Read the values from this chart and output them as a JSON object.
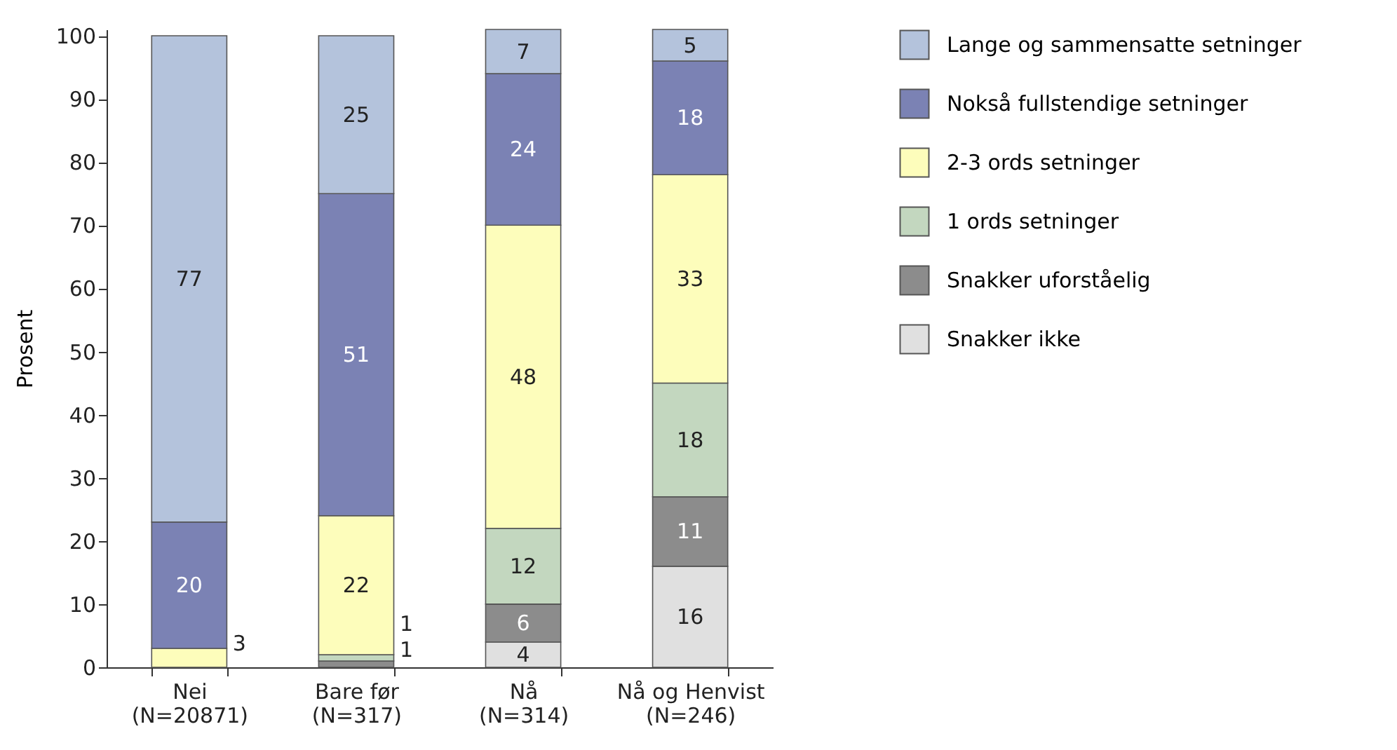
{
  "chart_data": {
    "type": "bar",
    "stacked": true,
    "ylabel": "Prosent",
    "categories": [
      "Nei\n(N=20871)",
      "Bare før\n(N=317)",
      "Nå\n(N=314)",
      "Nå og Henvist\n(N=246)"
    ],
    "series": [
      {
        "name": "Snakker ikke",
        "color": "#e0e0e0",
        "values": [
          null,
          null,
          4,
          16
        ]
      },
      {
        "name": "Snakker uforståelig",
        "color": "#8c8c8c",
        "values": [
          null,
          1,
          6,
          11
        ]
      },
      {
        "name": "1 ords setninger",
        "color": "#c3d7bf",
        "values": [
          null,
          1,
          12,
          18
        ]
      },
      {
        "name": "2-3 ords setninger",
        "color": "#fdfdbb",
        "values": [
          3,
          22,
          48,
          33
        ]
      },
      {
        "name": "Nokså fullstendige setninger",
        "color": "#7b82b4",
        "values": [
          20,
          51,
          24,
          18
        ]
      },
      {
        "name": "Lange og sammensatte setninger",
        "color": "#b4c3dc",
        "values": [
          77,
          25,
          7,
          5
        ]
      }
    ],
    "ylim": [
      0,
      101
    ],
    "yticks": [
      0,
      10,
      20,
      30,
      40,
      50,
      60,
      70,
      80,
      90,
      100
    ],
    "data_labels": true,
    "legend": "right",
    "grid": false
  }
}
